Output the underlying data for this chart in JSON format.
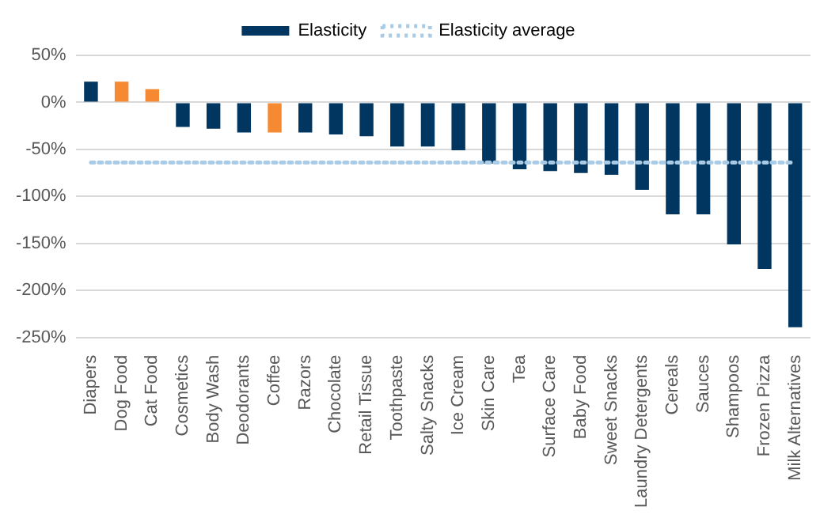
{
  "chart_data": {
    "type": "bar",
    "categories": [
      "Diapers",
      "Dog Food",
      "Cat Food",
      "Cosmetics",
      "Body Wash",
      "Deodorants",
      "Coffee",
      "Razors",
      "Chocolate",
      "Retail Tissue",
      "Toothpaste",
      "Salty Snacks",
      "Ice Cream",
      "Skin Care",
      "Tea",
      "Surface Care",
      "Baby Food",
      "Sweet Snacks",
      "Laundry Detergents",
      "Cereals",
      "Sauces",
      "Shampoos",
      "Frozen Pizza",
      "Milk Alternatives"
    ],
    "series": [
      {
        "name": "Elasticity",
        "color": "#003660",
        "colors": [
          "#003660",
          "#f58a32",
          "#f58a32",
          "#003660",
          "#003660",
          "#003660",
          "#f58a32",
          "#003660",
          "#003660",
          "#003660",
          "#003660",
          "#003660",
          "#003660",
          "#003660",
          "#003660",
          "#003660",
          "#003660",
          "#003660",
          "#003660",
          "#003660",
          "#003660",
          "#003660",
          "#003660",
          "#003660"
        ],
        "values": [
          22,
          22,
          14,
          -26,
          -28,
          -32,
          -32,
          -32,
          -34,
          -36,
          -47,
          -47,
          -51,
          -65,
          -71,
          -73,
          -75,
          -77,
          -93,
          -119,
          -119,
          -151,
          -177,
          -239
        ]
      },
      {
        "name": "Elasticity average",
        "type": "line",
        "color": "#a9cbe6",
        "line_style": "dotted",
        "marker": "none",
        "values": [
          -64,
          -64,
          -64,
          -64,
          -64,
          -64,
          -64,
          -64,
          -64,
          -64,
          -64,
          -64,
          -64,
          -64,
          -64,
          -64,
          -64,
          -64,
          -64,
          -64,
          -64,
          -64,
          -64,
          -64
        ]
      }
    ],
    "ylim": [
      -250,
      50
    ],
    "yticks": [
      {
        "value": -250,
        "label": "-250%"
      },
      {
        "value": -200,
        "label": "-200%"
      },
      {
        "value": -150,
        "label": "-150%"
      },
      {
        "value": -100,
        "label": "-100%"
      },
      {
        "value": -50,
        "label": "-50%"
      },
      {
        "value": 0,
        "label": "0%"
      },
      {
        "value": 50,
        "label": "50%"
      }
    ],
    "grid": "y",
    "legend": "top"
  }
}
